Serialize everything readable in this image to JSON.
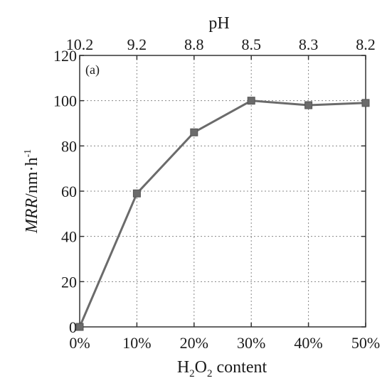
{
  "chart_data": {
    "type": "line",
    "panel_label": "(a)",
    "categories": [
      "0%",
      "10%",
      "20%",
      "30%",
      "40%",
      "50%"
    ],
    "x_values": [
      0,
      10,
      20,
      30,
      40,
      50
    ],
    "top_axis_label": "pH",
    "top_tick_labels": [
      "10.2",
      "9.2",
      "8.8",
      "8.5",
      "8.3",
      "8.2"
    ],
    "xlabel": {
      "prefix": "H",
      "sub1": "2",
      "mid": "O",
      "sub2": "2",
      "suffix": " content"
    },
    "ylabel": {
      "italic": "MRR",
      "unit": "/nm·h",
      "sup": "-1"
    },
    "ylim": [
      0,
      120
    ],
    "yticks": [
      0,
      20,
      40,
      60,
      80,
      100,
      120
    ],
    "grid": true,
    "series": [
      {
        "values": [
          0,
          59,
          86,
          100,
          98,
          99
        ],
        "color": "#6b6b6b",
        "marker": "square"
      }
    ]
  }
}
